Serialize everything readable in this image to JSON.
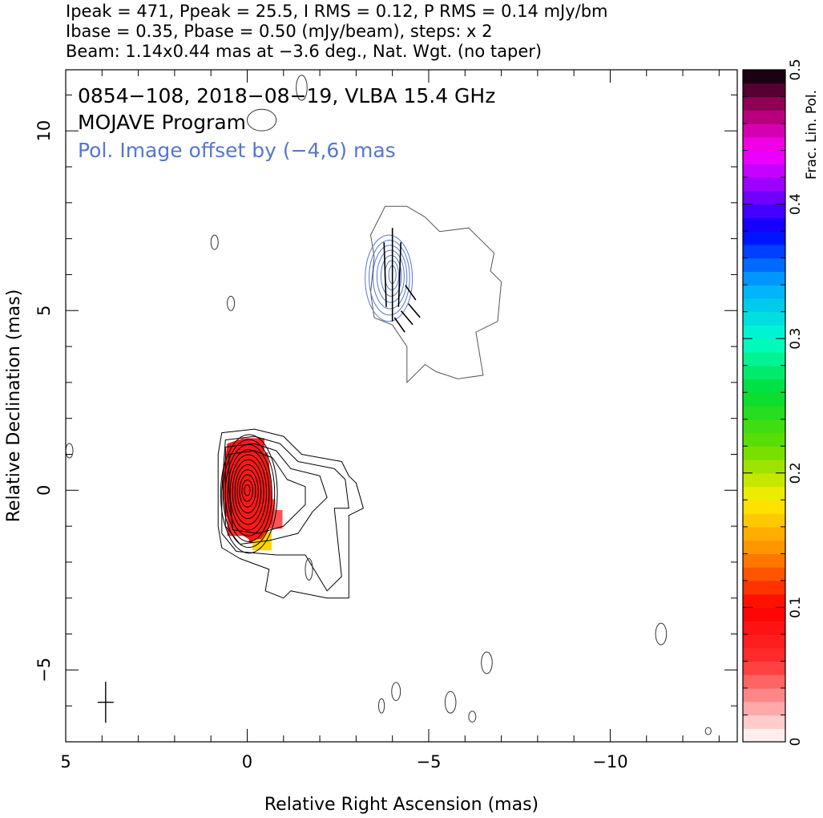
{
  "header": {
    "line1": "Ipeak = 471, Ppeak = 25.5, I RMS = 0.12, P RMS = 0.14 mJy/bm",
    "line2": "Ibase = 0.35, Pbase = 0.50 (mJy/beam), steps: x 2",
    "line3": "Beam: 1.14x0.44 mas at −3.6 deg., Nat. Wgt. (no taper)"
  },
  "annotations": {
    "source": "0854−108, 2018−08−19, VLBA 15.4 GHz",
    "program": "MOJAVE Program",
    "offset": "Pol. Image offset by (−4,6) mas"
  },
  "colors": {
    "stokes_i": "#000000",
    "pol_contours": "#5577cc",
    "offset_text": "#5577cc"
  },
  "chart_data": {
    "type": "heatmap",
    "xlabel": "Relative Right Ascension (mas)",
    "ylabel": "Relative Declination (mas)",
    "xlim": [
      5,
      -13.5
    ],
    "ylim": [
      -7,
      11.7
    ],
    "xticks": [
      {
        "v": 5,
        "label": "5"
      },
      {
        "v": 0,
        "label": "0"
      },
      {
        "v": -5,
        "label": "−5"
      },
      {
        "v": -10,
        "label": "−10"
      }
    ],
    "yticks": [
      {
        "v": -5,
        "label": "−5"
      },
      {
        "v": 0,
        "label": "0"
      },
      {
        "v": 5,
        "label": "5"
      },
      {
        "v": 10,
        "label": "10"
      }
    ],
    "colorbar": {
      "label": "Frac. Lin. Pol.",
      "range": [
        0,
        0.5
      ],
      "ticks": [
        {
          "v": 0,
          "label": "0"
        },
        {
          "v": 0.1,
          "label": "0.1"
        },
        {
          "v": 0.2,
          "label": "0.2"
        },
        {
          "v": 0.3,
          "label": "0.3"
        },
        {
          "v": 0.4,
          "label": "0.4"
        },
        {
          "v": 0.5,
          "label": "0.5"
        }
      ],
      "stops": [
        [
          0,
          "#ffffff"
        ],
        [
          0.06,
          "#ff3030"
        ],
        [
          0.1,
          "#ff0000"
        ],
        [
          0.14,
          "#ff8800"
        ],
        [
          0.18,
          "#ffee00"
        ],
        [
          0.22,
          "#66dd00"
        ],
        [
          0.26,
          "#00dd33"
        ],
        [
          0.3,
          "#00ffcc"
        ],
        [
          0.34,
          "#00aaff"
        ],
        [
          0.38,
          "#0000ff"
        ],
        [
          0.41,
          "#8800ff"
        ],
        [
          0.44,
          "#ff00ff"
        ],
        [
          0.47,
          "#aa0066"
        ],
        [
          0.5,
          "#000000"
        ]
      ]
    },
    "core": {
      "x": 0,
      "y": 0
    },
    "core_contour_levels": [
      0.35,
      0.7,
      1.4,
      2.8,
      5.6,
      11.2,
      22.4,
      44.8,
      89.6,
      179.2,
      358.4
    ],
    "jet_contours": [
      [
        [
          0.7,
          1.6
        ],
        [
          -0.2,
          1.7
        ],
        [
          -1.0,
          1.5
        ],
        [
          -1.5,
          1.0
        ],
        [
          -2.6,
          0.8
        ],
        [
          -2.8,
          0.4
        ],
        [
          -3.0,
          0.2
        ],
        [
          -3.2,
          -0.5
        ],
        [
          -2.8,
          -0.7
        ],
        [
          -2.8,
          -3.0
        ],
        [
          -2.2,
          -3.0
        ],
        [
          -1.2,
          -2.8
        ],
        [
          -1.0,
          -3.0
        ],
        [
          -0.5,
          -2.8
        ],
        [
          -0.6,
          -2.2
        ],
        [
          0.2,
          -1.9
        ],
        [
          0.7,
          -1.6
        ],
        [
          0.8,
          -1.0
        ],
        [
          0.8,
          0.0
        ],
        [
          0.8,
          1.0
        ]
      ],
      [
        [
          0.6,
          1.4
        ],
        [
          -0.2,
          1.5
        ],
        [
          -0.9,
          1.3
        ],
        [
          -1.4,
          0.8
        ],
        [
          -2.4,
          0.6
        ],
        [
          -2.7,
          0.3
        ],
        [
          -2.8,
          -0.5
        ],
        [
          -2.4,
          -0.5
        ],
        [
          -2.6,
          -2.4
        ],
        [
          -2.2,
          -2.8
        ],
        [
          -1.6,
          -1.8
        ],
        [
          -0.8,
          -1.8
        ],
        [
          0.3,
          -1.7
        ],
        [
          0.7,
          -1.2
        ],
        [
          0.7,
          0.0
        ]
      ],
      [
        [
          0.6,
          1.2
        ],
        [
          -0.2,
          1.3
        ],
        [
          -0.8,
          1.1
        ],
        [
          -1.2,
          0.6
        ],
        [
          -2.0,
          0.4
        ],
        [
          -2.2,
          -0.2
        ],
        [
          -1.8,
          -0.6
        ],
        [
          -1.4,
          -1.2
        ],
        [
          -0.6,
          -1.4
        ],
        [
          0.2,
          -1.5
        ],
        [
          0.6,
          -1.0
        ],
        [
          0.6,
          0.0
        ]
      ],
      [
        [
          0.5,
          1.0
        ],
        [
          -0.2,
          1.1
        ],
        [
          -0.7,
          0.9
        ],
        [
          -1.1,
          0.3
        ],
        [
          -1.6,
          0.1
        ],
        [
          -1.6,
          -0.4
        ],
        [
          -1.0,
          -1.0
        ],
        [
          -0.3,
          -1.2
        ],
        [
          0.4,
          -1.1
        ],
        [
          0.5,
          0.0
        ]
      ]
    ],
    "fractional_pol_pixels": [
      {
        "x": -0.2,
        "y": 1.2,
        "frac": 0.07
      },
      {
        "x": 0.0,
        "y": 1.1,
        "frac": 0.06
      },
      {
        "x": -0.3,
        "y": 0.8,
        "frac": 0.06
      },
      {
        "x": 0.2,
        "y": 0.6,
        "frac": 0.06
      },
      {
        "x": -0.5,
        "y": -0.5,
        "frac": 0.05
      },
      {
        "x": -0.7,
        "y": -0.8,
        "frac": 0.05
      },
      {
        "x": -0.3,
        "y": -1.2,
        "frac": 0.08
      },
      {
        "x": -0.4,
        "y": -1.4,
        "frac": 0.17
      },
      {
        "x": 0.3,
        "y": -1.0,
        "frac": 0.06
      }
    ],
    "pol_region": {
      "offset": [
        -4,
        6
      ],
      "intensity_peak": [
        -4,
        6
      ]
    },
    "pol_vectors": [
      {
        "x": -4.0,
        "y": 6.0,
        "angle_deg": 90,
        "len": 2.6
      },
      {
        "x": -3.8,
        "y": 6.0,
        "angle_deg": 88,
        "len": 1.8
      },
      {
        "x": -4.2,
        "y": 6.0,
        "angle_deg": 92,
        "len": 1.8
      },
      {
        "x": -4.5,
        "y": 5.5,
        "angle_deg": 55,
        "len": 0.5
      },
      {
        "x": -4.6,
        "y": 5.0,
        "angle_deg": 50,
        "len": 0.5
      },
      {
        "x": -4.4,
        "y": 4.8,
        "angle_deg": 50,
        "len": 0.5
      },
      {
        "x": -4.2,
        "y": 4.6,
        "angle_deg": 55,
        "len": 0.5
      }
    ],
    "noise_islands": [
      {
        "x": -1.5,
        "y": 11.2,
        "rx": 0.15,
        "ry": 0.35
      },
      {
        "x": 0.9,
        "y": 6.9,
        "rx": 0.1,
        "ry": 0.2
      },
      {
        "x": -0.4,
        "y": 10.3,
        "rx": 0.4,
        "ry": 0.3
      },
      {
        "x": 0.45,
        "y": 5.2,
        "rx": 0.1,
        "ry": 0.2
      },
      {
        "x": 4.9,
        "y": 1.1,
        "rx": 0.1,
        "ry": 0.2
      },
      {
        "x": -6.6,
        "y": -4.8,
        "rx": 0.15,
        "ry": 0.3
      },
      {
        "x": -5.6,
        "y": -5.9,
        "rx": 0.15,
        "ry": 0.3
      },
      {
        "x": -6.2,
        "y": -6.3,
        "rx": 0.1,
        "ry": 0.15
      },
      {
        "x": -11.4,
        "y": -4.0,
        "rx": 0.15,
        "ry": 0.3
      },
      {
        "x": -4.1,
        "y": -5.6,
        "rx": 0.12,
        "ry": 0.25
      },
      {
        "x": -3.7,
        "y": -6.0,
        "rx": 0.08,
        "ry": 0.2
      },
      {
        "x": -12.7,
        "y": -6.7,
        "rx": 0.08,
        "ry": 0.1
      },
      {
        "x": -1.7,
        "y": -2.2,
        "rx": 0.1,
        "ry": 0.3
      }
    ],
    "beam": {
      "x": 3.9,
      "y": -5.9,
      "major": 1.14,
      "minor": 0.44,
      "pa_deg": -3.6
    }
  }
}
